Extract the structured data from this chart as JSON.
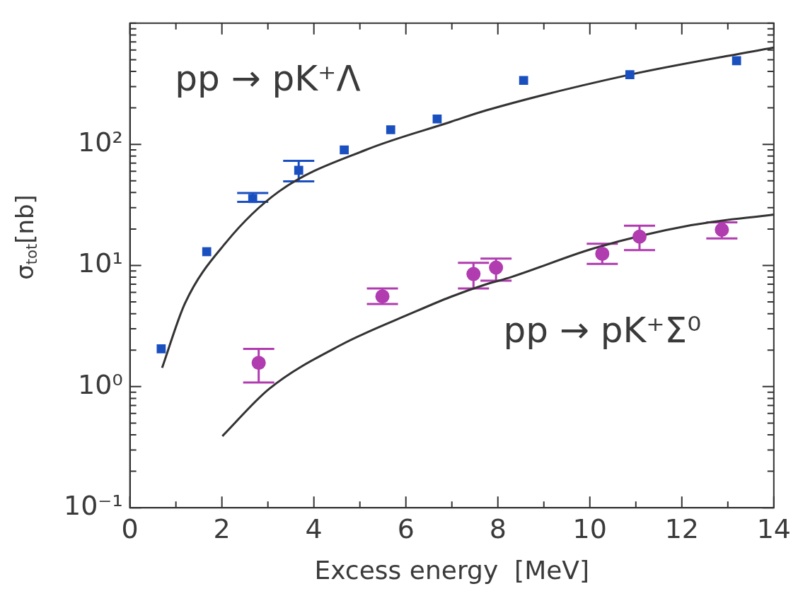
{
  "chart_data": {
    "type": "scatter",
    "xlabel": "Excess energy  [MeV]",
    "ylabel": "σ$_{tot}$[nb]",
    "log": "y",
    "grid": false,
    "annotations": [
      "pp → pK⁺Λ",
      "pp → pK⁺Σ⁰"
    ],
    "xlim": [
      0,
      14
    ],
    "ylim": [
      0.1,
      1000
    ],
    "xticks": [
      0,
      {
        "value": 1,
        "label": null
      },
      2,
      {
        "value": 3,
        "label": null
      },
      4,
      {
        "value": 5,
        "label": null
      },
      6,
      {
        "value": 7,
        "label": null
      },
      8,
      {
        "value": 9,
        "label": null
      },
      10,
      {
        "value": 11,
        "label": null
      },
      12,
      {
        "value": 13,
        "label": null
      },
      14
    ],
    "yticks": [
      {
        "value": 0.1,
        "label": "10⁻¹"
      },
      {
        "value": 0.2,
        "label": null
      },
      {
        "value": 0.3,
        "label": null
      },
      {
        "value": 0.4,
        "label": null
      },
      {
        "value": 0.5,
        "label": null
      },
      {
        "value": 0.6,
        "label": null
      },
      {
        "value": 0.7,
        "label": null
      },
      {
        "value": 0.8,
        "label": null
      },
      {
        "value": 0.9,
        "label": null
      },
      {
        "value": 1,
        "label": "10⁰"
      },
      {
        "value": 2,
        "label": null
      },
      {
        "value": 3,
        "label": null
      },
      {
        "value": 4,
        "label": null
      },
      {
        "value": 5,
        "label": null
      },
      {
        "value": 6,
        "label": null
      },
      {
        "value": 7,
        "label": null
      },
      {
        "value": 8,
        "label": null
      },
      {
        "value": 9,
        "label": null
      },
      {
        "value": 10,
        "label": "10¹"
      },
      {
        "value": 20,
        "label": null
      },
      {
        "value": 30,
        "label": null
      },
      {
        "value": 40,
        "label": null
      },
      {
        "value": 50,
        "label": null
      },
      {
        "value": 60,
        "label": null
      },
      {
        "value": 70,
        "label": null
      },
      {
        "value": 80,
        "label": null
      },
      {
        "value": 90,
        "label": null
      },
      {
        "value": 100,
        "label": "10²"
      },
      {
        "value": 200,
        "label": null
      },
      {
        "value": 300,
        "label": null
      },
      {
        "value": 400,
        "label": null
      },
      {
        "value": 500,
        "label": null
      },
      {
        "value": 600,
        "label": null
      },
      {
        "value": 700,
        "label": null
      },
      {
        "value": 800,
        "label": null
      },
      {
        "value": 900,
        "label": null
      },
      {
        "value": 1000,
        "label": null
      }
    ],
    "series": [
      {
        "color": "#1a4fc0",
        "marker": "square",
        "x": [
          0.68,
          1.67,
          2.67,
          3.67,
          4.66,
          5.67,
          6.68,
          8.56,
          10.87,
          13.19
        ],
        "values": [
          2.05,
          13,
          35.7,
          61,
          90,
          132,
          162,
          337,
          376,
          490
        ],
        "errors": [
          null,
          null,
          [
            33.5,
            39.6
          ],
          [
            49.5,
            73
          ],
          null,
          null,
          null,
          null,
          null,
          null
        ]
      },
      {
        "color": "#b03cb0",
        "marker": "circle",
        "x": [
          2.8,
          5.49,
          7.47,
          7.96,
          10.27,
          11.08,
          12.87
        ],
        "values": [
          1.57,
          5.56,
          8.5,
          9.6,
          12.5,
          17.3,
          19.7
        ],
        "errors": [
          [
            1.08,
            2.05
          ],
          [
            4.81,
            6.46
          ],
          [
            6.46,
            10.5
          ],
          [
            7.5,
            11.4
          ],
          [
            10.3,
            15.1
          ],
          [
            13.4,
            21.3
          ],
          [
            16.7,
            22.7
          ]
        ]
      },
      {
        "type": "line",
        "color": "#333333",
        "marker": "none",
        "x": [
          0.7,
          1.2,
          2.09,
          3.24,
          5.13,
          6.97,
          7.75,
          10.87,
          14
        ],
        "values": [
          1.43,
          4.9,
          15.5,
          40.8,
          90,
          153,
          191,
          376,
          630
        ]
      },
      {
        "type": "line",
        "color": "#333333",
        "marker": "none",
        "x": [
          2.01,
          3.03,
          4.6,
          6.18,
          6.97,
          7.75,
          8.28,
          10.1,
          12.2,
          14
        ],
        "values": [
          0.39,
          0.96,
          2.22,
          4.12,
          5.5,
          7,
          8,
          13.9,
          21.5,
          26.3
        ]
      }
    ]
  }
}
